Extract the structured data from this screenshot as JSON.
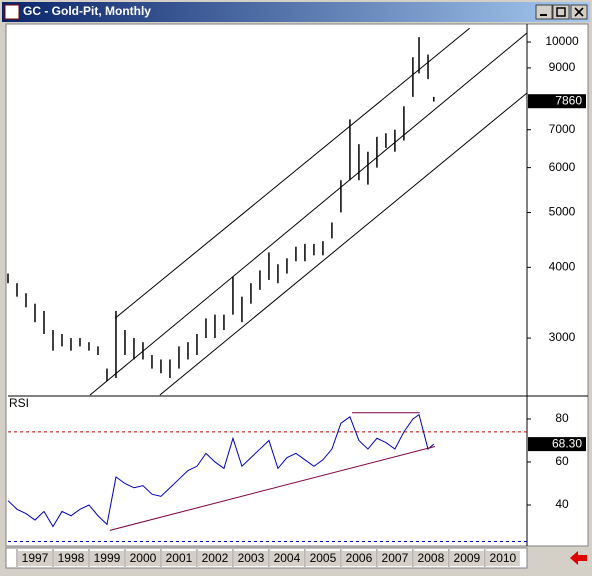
{
  "window": {
    "title": "GC - Gold-Pit, Monthly"
  },
  "chart_data": [
    {
      "type": "range-bar",
      "scale": "log",
      "color": "#000000",
      "x": [
        1996.75,
        1997.0,
        1997.25,
        1997.5,
        1997.75,
        1998.0,
        1998.25,
        1998.5,
        1998.75,
        1999.0,
        1999.25,
        1999.5,
        1999.75,
        2000.0,
        2000.25,
        2000.5,
        2000.75,
        2001.0,
        2001.25,
        2001.5,
        2001.75,
        2002.0,
        2002.25,
        2002.5,
        2002.75,
        2003.0,
        2003.25,
        2003.5,
        2003.75,
        2004.0,
        2004.25,
        2004.5,
        2004.75,
        2005.0,
        2005.25,
        2005.5,
        2005.75,
        2006.0,
        2006.25,
        2006.5,
        2006.75,
        2007.0,
        2007.25,
        2007.5,
        2007.75,
        2008.0,
        2008.17,
        2008.42,
        2008.58
      ],
      "series": [
        {
          "name": "High",
          "values": [
            3900,
            3750,
            3600,
            3450,
            3350,
            3100,
            3050,
            3000,
            3000,
            2950,
            2900,
            2650,
            3350,
            3100,
            3000,
            2950,
            2800,
            2750,
            2750,
            2900,
            2950,
            3050,
            3250,
            3300,
            3300,
            3850,
            3550,
            3750,
            3950,
            4250,
            4050,
            4150,
            4350,
            4400,
            4400,
            4450,
            4800,
            5700,
            7300,
            6600,
            6400,
            6800,
            6900,
            7000,
            7700,
            9400,
            10200,
            9500,
            8000
          ]
        },
        {
          "name": "Low",
          "values": [
            3750,
            3550,
            3400,
            3200,
            3050,
            2850,
            2900,
            2850,
            2900,
            2850,
            2800,
            2520,
            2550,
            2800,
            2750,
            2750,
            2650,
            2600,
            2550,
            2650,
            2750,
            2800,
            3000,
            3000,
            3100,
            3300,
            3200,
            3450,
            3650,
            3800,
            3750,
            3900,
            4100,
            4100,
            4200,
            4200,
            4500,
            5000,
            5700,
            5700,
            5600,
            6000,
            6500,
            6400,
            6700,
            8000,
            8800,
            8600,
            7850
          ]
        }
      ],
      "last_value": 7860,
      "xlim": [
        1996.75,
        2011.17
      ],
      "ylim": [
        2380,
        10716
      ],
      "yticks": [
        3000,
        4000,
        5000,
        6000,
        7000,
        9000,
        10000
      ],
      "trendlines": [
        {
          "color": "#000000",
          "x": [
            1999.72,
            2009.58
          ],
          "y": [
            3250,
            10580
          ]
        },
        {
          "color": "#000000",
          "x": [
            1999.03,
            2011.17
          ],
          "y": [
            2380,
            10373
          ]
        },
        {
          "color": "#000000",
          "x": [
            2000.97,
            2011.17
          ],
          "y": [
            2380,
            8128
          ]
        }
      ]
    },
    {
      "type": "line",
      "title": "RSI",
      "color": "#0000c0",
      "x": [
        1996.75,
        1997.0,
        1997.25,
        1997.5,
        1997.75,
        1998.0,
        1998.25,
        1998.5,
        1998.75,
        1999.0,
        1999.25,
        1999.5,
        1999.75,
        2000.0,
        2000.25,
        2000.5,
        2000.75,
        2001.0,
        2001.25,
        2001.5,
        2001.75,
        2002.0,
        2002.25,
        2002.5,
        2002.75,
        2003.0,
        2003.25,
        2003.5,
        2003.75,
        2004.0,
        2004.25,
        2004.5,
        2004.75,
        2005.0,
        2005.25,
        2005.5,
        2005.75,
        2006.0,
        2006.25,
        2006.5,
        2006.75,
        2007.0,
        2007.25,
        2007.5,
        2007.75,
        2008.0,
        2008.17,
        2008.42,
        2008.58
      ],
      "values": [
        42,
        38,
        36,
        33,
        37,
        30,
        37,
        35,
        38,
        40,
        35,
        31,
        53,
        50,
        48,
        49,
        45,
        44,
        48,
        52,
        56,
        58,
        64,
        60,
        57,
        71,
        58,
        62,
        66,
        70,
        57,
        62,
        64,
        61,
        58,
        61,
        66,
        78,
        81,
        70,
        66,
        71,
        69,
        66,
        74,
        80,
        82,
        66,
        68.3
      ],
      "last_value": 68.3,
      "last_value_label": "68.30",
      "xlim": [
        1996.75,
        2011.17
      ],
      "xticks": [
        1997,
        1998,
        1999,
        2000,
        2001,
        2002,
        2003,
        2004,
        2005,
        2006,
        2007,
        2008,
        2009,
        2010
      ],
      "ylim": [
        21.4,
        90.2
      ],
      "yticks": [
        40,
        60,
        80
      ],
      "reference_lines": [
        {
          "value": 74,
          "color": "#c00000"
        },
        {
          "value": 23,
          "color": "#0000c0"
        }
      ],
      "trendlines": [
        {
          "color": "#800040",
          "x": [
            1999.58,
            2008.61
          ],
          "y": [
            28.2,
            67.2
          ]
        },
        {
          "color": "#800040",
          "x": [
            2006.31,
            2008.19
          ],
          "y": [
            82.9,
            82.9
          ]
        }
      ]
    }
  ]
}
